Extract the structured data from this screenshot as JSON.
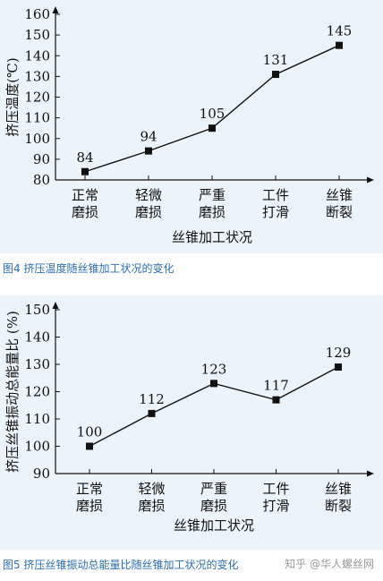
{
  "figures": [
    {
      "caption": "图4  挤压温度随丝锥加工状况的变化"
    },
    {
      "caption": "图5  挤压丝锥振动总能量比随丝锥加工状况的变化"
    }
  ],
  "watermark": "知乎 @华人螺丝网",
  "chart_data": [
    {
      "type": "line",
      "title": "",
      "xlabel": "丝锥加工状况",
      "ylabel": "挤压温度(℃)",
      "categories": [
        [
          "正常",
          "磨损"
        ],
        [
          "轻微",
          "磨损"
        ],
        [
          "严重",
          "磨损"
        ],
        [
          "工件",
          "打滑"
        ],
        [
          "丝锥",
          "断裂"
        ]
      ],
      "values": [
        84,
        94,
        105,
        131,
        145
      ],
      "data_labels": [
        "84",
        "94",
        "105",
        "131",
        "145"
      ],
      "ylim": [
        80,
        160
      ],
      "yticks": [
        80,
        90,
        100,
        110,
        120,
        130,
        140,
        150,
        160
      ],
      "grid": false,
      "marker": "square"
    },
    {
      "type": "line",
      "title": "",
      "xlabel": "丝锥加工状况",
      "ylabel": "挤压丝锥振动总能量比 (%)",
      "categories": [
        [
          "正常",
          "磨损"
        ],
        [
          "轻微",
          "磨损"
        ],
        [
          "严重",
          "磨损"
        ],
        [
          "工件",
          "打滑"
        ],
        [
          "丝锥",
          "断裂"
        ]
      ],
      "values": [
        100,
        112,
        123,
        117,
        129
      ],
      "data_labels": [
        "100",
        "112",
        "123",
        "117",
        "129"
      ],
      "ylim": [
        90,
        150
      ],
      "yticks": [
        90,
        100,
        110,
        120,
        130,
        140,
        150
      ],
      "grid": false,
      "marker": "square"
    }
  ]
}
